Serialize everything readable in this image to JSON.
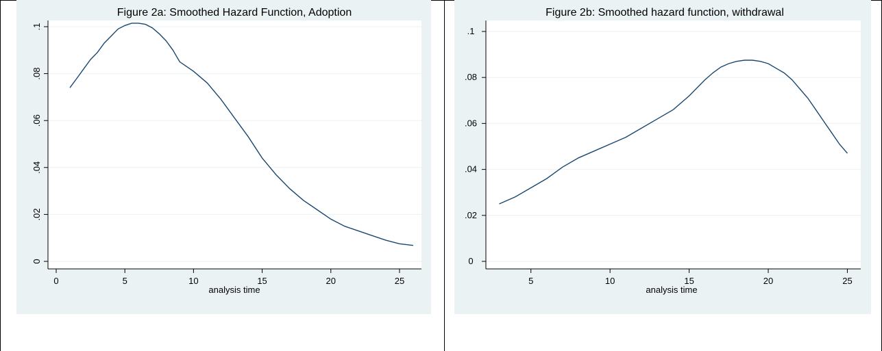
{
  "chart_data": [
    {
      "type": "line",
      "title": "Figure 2a: Smoothed Hazard Function, Adoption",
      "xlabel": "analysis time",
      "ylabel": "",
      "xlim": [
        0,
        26
      ],
      "ylim": [
        0,
        0.1
      ],
      "xticks": [
        0,
        5,
        10,
        15,
        20,
        25
      ],
      "xtick_labels": [
        "0",
        "5",
        "10",
        "15",
        "20",
        "25"
      ],
      "yticks": [
        0,
        0.02,
        0.04,
        0.06,
        0.08,
        0.1
      ],
      "ytick_labels": [
        "0",
        ".02",
        ".04",
        ".06",
        ".08",
        ".1"
      ],
      "ytick_rotation": "vertical",
      "grid": true,
      "colors": {
        "panel": "#eaf2f3",
        "plot": "#ffffff",
        "line": "#1a476f",
        "grid": "#eaf2f3"
      },
      "series": [
        {
          "x": [
            1,
            1.5,
            2,
            2.5,
            3,
            3.5,
            4,
            4.5,
            5,
            5.5,
            6,
            6.5,
            7,
            7.5,
            8,
            8.5,
            9,
            9.5,
            10,
            11,
            12,
            13,
            14,
            15,
            16,
            17,
            18,
            19,
            20,
            21,
            22,
            23,
            24,
            25,
            26
          ],
          "y": [
            0.074,
            0.078,
            0.082,
            0.086,
            0.089,
            0.093,
            0.096,
            0.099,
            0.1005,
            0.1015,
            0.1015,
            0.101,
            0.0995,
            0.097,
            0.094,
            0.09,
            0.085,
            0.083,
            0.081,
            0.076,
            0.069,
            0.061,
            0.053,
            0.044,
            0.037,
            0.031,
            0.026,
            0.022,
            0.018,
            0.015,
            0.013,
            0.011,
            0.009,
            0.0075,
            0.0068
          ]
        }
      ]
    },
    {
      "type": "line",
      "title": "Figure 2b: Smoothed hazard function, withdrawal",
      "xlabel": "analysis time",
      "ylabel": "",
      "xlim": [
        2.5,
        25.5
      ],
      "ylim": [
        0,
        0.1
      ],
      "xticks": [
        5,
        10,
        15,
        20,
        25
      ],
      "xtick_labels": [
        "5",
        "10",
        "15",
        "20",
        "25"
      ],
      "yticks": [
        0,
        0.02,
        0.04,
        0.06,
        0.08,
        0.1
      ],
      "ytick_labels": [
        "0",
        ".02",
        ".04",
        ".06",
        ".08",
        ".1"
      ],
      "ytick_rotation": "horizontal",
      "grid": true,
      "colors": {
        "panel": "#eaf2f3",
        "plot": "#ffffff",
        "line": "#1a476f",
        "grid": "#eaf2f3"
      },
      "series": [
        {
          "x": [
            3,
            4,
            5,
            6,
            7,
            8,
            9,
            10,
            11,
            12,
            13,
            14,
            15,
            16,
            16.5,
            17,
            17.5,
            18,
            18.5,
            19,
            19.5,
            20,
            20.5,
            21,
            21.5,
            22,
            22.5,
            23,
            23.5,
            24,
            24.5,
            25
          ],
          "y": [
            0.025,
            0.028,
            0.032,
            0.036,
            0.041,
            0.045,
            0.048,
            0.051,
            0.054,
            0.058,
            0.062,
            0.066,
            0.072,
            0.079,
            0.082,
            0.0845,
            0.086,
            0.087,
            0.0875,
            0.0875,
            0.087,
            0.086,
            0.084,
            0.082,
            0.079,
            0.075,
            0.071,
            0.066,
            0.061,
            0.056,
            0.051,
            0.047
          ]
        }
      ]
    }
  ]
}
